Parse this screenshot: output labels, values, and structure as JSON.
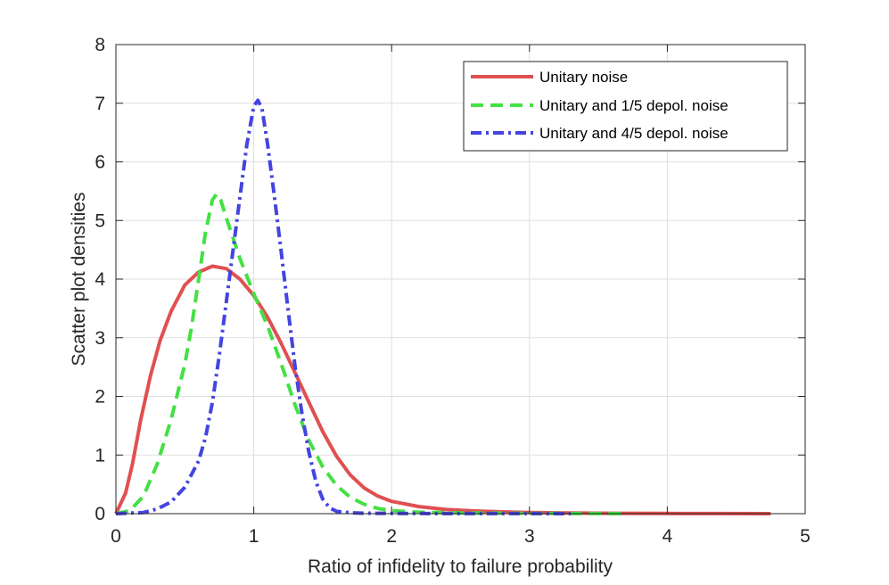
{
  "chart_data": {
    "type": "line",
    "title": "",
    "xlabel": "Ratio of infidelity to failure probability",
    "ylabel": "Scatter plot densities",
    "xlim": [
      0,
      5
    ],
    "ylim": [
      0,
      8
    ],
    "xticks": [
      0,
      1,
      2,
      3,
      4,
      5
    ],
    "yticks": [
      0,
      1,
      2,
      3,
      4,
      5,
      6,
      7,
      8
    ],
    "grid": true,
    "legend_position": "top-right",
    "series": [
      {
        "name": "Unitary noise",
        "color": "#e05050",
        "style": "solid",
        "x": [
          0,
          0.07,
          0.12,
          0.18,
          0.25,
          0.32,
          0.4,
          0.5,
          0.6,
          0.7,
          0.8,
          0.9,
          1.0,
          1.1,
          1.2,
          1.3,
          1.4,
          1.5,
          1.6,
          1.7,
          1.8,
          1.9,
          2.0,
          2.2,
          2.4,
          2.6,
          2.8,
          3.0,
          3.3,
          3.6,
          4.0,
          4.4,
          4.75
        ],
        "y": [
          0,
          0.35,
          0.85,
          1.6,
          2.35,
          2.95,
          3.45,
          3.9,
          4.12,
          4.22,
          4.18,
          4.0,
          3.72,
          3.35,
          2.9,
          2.4,
          1.9,
          1.4,
          0.98,
          0.66,
          0.44,
          0.3,
          0.21,
          0.12,
          0.07,
          0.045,
          0.03,
          0.02,
          0.01,
          0.006,
          0.003,
          0.001,
          0
        ]
      },
      {
        "name": "Unitary and 1/5 depol. noise",
        "color": "#44e044",
        "style": "dashed",
        "x": [
          0,
          0.1,
          0.2,
          0.3,
          0.4,
          0.5,
          0.55,
          0.6,
          0.65,
          0.7,
          0.73,
          0.76,
          0.8,
          0.85,
          0.9,
          1.0,
          1.1,
          1.2,
          1.3,
          1.4,
          1.5,
          1.6,
          1.7,
          1.8,
          1.9,
          2.0,
          2.2,
          2.5,
          3.0,
          3.5,
          3.7
        ],
        "y": [
          0,
          0.05,
          0.3,
          0.85,
          1.6,
          2.55,
          3.2,
          4.0,
          4.8,
          5.35,
          5.45,
          5.35,
          5.05,
          4.7,
          4.35,
          3.75,
          3.2,
          2.55,
          1.85,
          1.25,
          0.8,
          0.48,
          0.28,
          0.16,
          0.09,
          0.05,
          0.025,
          0.012,
          0.005,
          0.002,
          0
        ]
      },
      {
        "name": "Unitary and 4/5 depol. noise",
        "color": "#4444e0",
        "style": "dashdot",
        "x": [
          0,
          0.2,
          0.3,
          0.4,
          0.5,
          0.6,
          0.65,
          0.7,
          0.75,
          0.8,
          0.85,
          0.9,
          0.95,
          1.0,
          1.03,
          1.06,
          1.1,
          1.15,
          1.2,
          1.25,
          1.3,
          1.35,
          1.4,
          1.45,
          1.5,
          1.55,
          1.6,
          1.7,
          1.8,
          2.0,
          2.5,
          3.0,
          3.3
        ],
        "y": [
          0,
          0.02,
          0.08,
          0.2,
          0.45,
          0.9,
          1.3,
          1.9,
          2.7,
          3.6,
          4.5,
          5.4,
          6.3,
          6.95,
          7.05,
          6.9,
          6.3,
          5.4,
          4.45,
          3.45,
          2.5,
          1.7,
          1.05,
          0.55,
          0.25,
          0.1,
          0.04,
          0.015,
          0.008,
          0.004,
          0.002,
          0.001,
          0
        ]
      }
    ]
  }
}
